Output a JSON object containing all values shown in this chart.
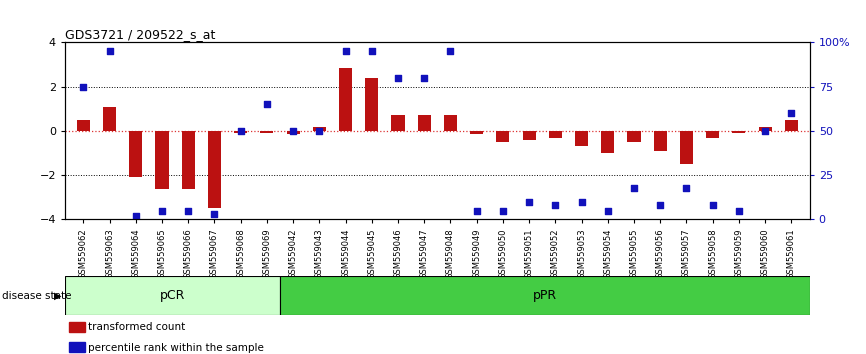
{
  "title": "GDS3721 / 209522_s_at",
  "samples": [
    "GSM559062",
    "GSM559063",
    "GSM559064",
    "GSM559065",
    "GSM559066",
    "GSM559067",
    "GSM559068",
    "GSM559069",
    "GSM559042",
    "GSM559043",
    "GSM559044",
    "GSM559045",
    "GSM559046",
    "GSM559047",
    "GSM559048",
    "GSM559049",
    "GSM559050",
    "GSM559051",
    "GSM559052",
    "GSM559053",
    "GSM559054",
    "GSM559055",
    "GSM559056",
    "GSM559057",
    "GSM559058",
    "GSM559059",
    "GSM559060",
    "GSM559061"
  ],
  "bar_values": [
    0.5,
    1.1,
    -2.1,
    -2.6,
    -2.6,
    -3.5,
    -0.1,
    -0.1,
    -0.15,
    0.2,
    2.85,
    2.4,
    0.7,
    0.7,
    0.7,
    -0.15,
    -0.5,
    -0.4,
    -0.3,
    -0.7,
    -1.0,
    -0.5,
    -0.9,
    -1.5,
    -0.3,
    -0.1,
    0.2,
    0.5
  ],
  "percentile_values": [
    75,
    95,
    2,
    5,
    5,
    3,
    50,
    65,
    50,
    50,
    95,
    95,
    80,
    80,
    95,
    5,
    5,
    10,
    8,
    10,
    5,
    18,
    8,
    18,
    8,
    5,
    50,
    60
  ],
  "pCR_count": 8,
  "pPR_count": 20,
  "bar_color": "#bb1111",
  "blue_color": "#1111bb",
  "ylim": [
    -4,
    4
  ],
  "right_ylim": [
    0,
    100
  ],
  "dotted_lines": [
    2,
    -2
  ],
  "zero_line_color": "#dd3333",
  "legend_bar_label": "transformed count",
  "legend_blue_label": "percentile rank within the sample",
  "disease_state_label": "disease state",
  "pCR_label": "pCR",
  "pPR_label": "pPR",
  "pCR_color": "#ccffcc",
  "pPR_color": "#44cc44",
  "right_yticks": [
    0,
    25,
    50,
    75,
    100
  ],
  "right_yticklabels": [
    "0",
    "25",
    "50",
    "75",
    "100%"
  ],
  "left_yticks": [
    -4,
    -2,
    0,
    2,
    4
  ]
}
